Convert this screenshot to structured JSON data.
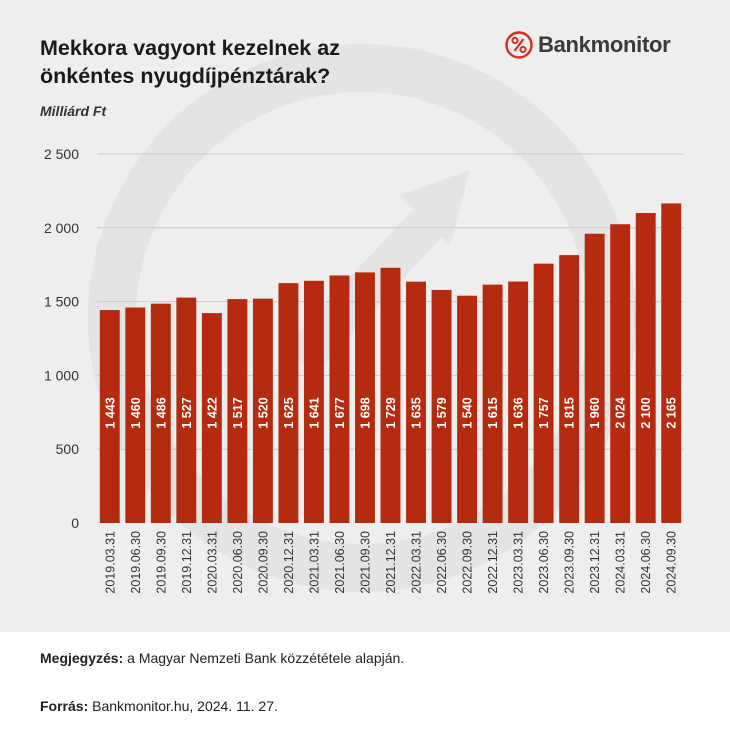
{
  "title_lines": [
    "Mekkora vagyont kezelnek az",
    "önkéntes nyugdíjpénztárak?"
  ],
  "brand": {
    "name": "Bankmonitor",
    "logo_icon": "percent-circle-icon",
    "color": "#d62d1c"
  },
  "note": {
    "label": "Megjegyzés:",
    "text": " a Magyar Nemzeti Bank közzététele alapján."
  },
  "source": {
    "label": "Forrás:",
    "text": " Bankmonitor.hu, 2024. 11. 27."
  },
  "colors": {
    "bar": "#b52b10",
    "bar_label": "#ffffff",
    "background": "#eeeeee"
  },
  "chart_data": {
    "type": "bar",
    "title": "Mekkora vagyont kezelnek az önkéntes nyugdíjpénztárak?",
    "ylabel": "Milliárd Ft",
    "xlabel": "",
    "ylim": [
      0,
      2500
    ],
    "yticks": [
      0,
      500,
      1000,
      1500,
      2000,
      2500
    ],
    "ytick_labels": [
      "0",
      "500",
      "1 000",
      "1 500",
      "2 000",
      "2 500"
    ],
    "grid": true,
    "categories": [
      "2019.03.31",
      "2019.06.30",
      "2019.09.30",
      "2019.12.31",
      "2020.03.31",
      "2020.06.30",
      "2020.09.30",
      "2020.12.31",
      "2021.03.31",
      "2021.06.30",
      "2021.09.30",
      "2021.12.31",
      "2022.03.31",
      "2022.06.30",
      "2022.09.30",
      "2022.12.31",
      "2023.03.31",
      "2023.06.30",
      "2023.09.30",
      "2023.12.31",
      "2024.03.31",
      "2024.06.30",
      "2024.09.30"
    ],
    "values": [
      1443,
      1460,
      1486,
      1527,
      1422,
      1517,
      1520,
      1625,
      1641,
      1677,
      1698,
      1729,
      1635,
      1579,
      1540,
      1615,
      1636,
      1757,
      1815,
      1960,
      2024,
      2100,
      2165
    ],
    "value_labels": [
      "1 443",
      "1 460",
      "1 486",
      "1 527",
      "1 422",
      "1 517",
      "1 520",
      "1 625",
      "1 641",
      "1 677",
      "1 698",
      "1 729",
      "1 635",
      "1 579",
      "1 540",
      "1 615",
      "1 636",
      "1 757",
      "1 815",
      "1 960",
      "2 024",
      "2 100",
      "2 165"
    ]
  }
}
